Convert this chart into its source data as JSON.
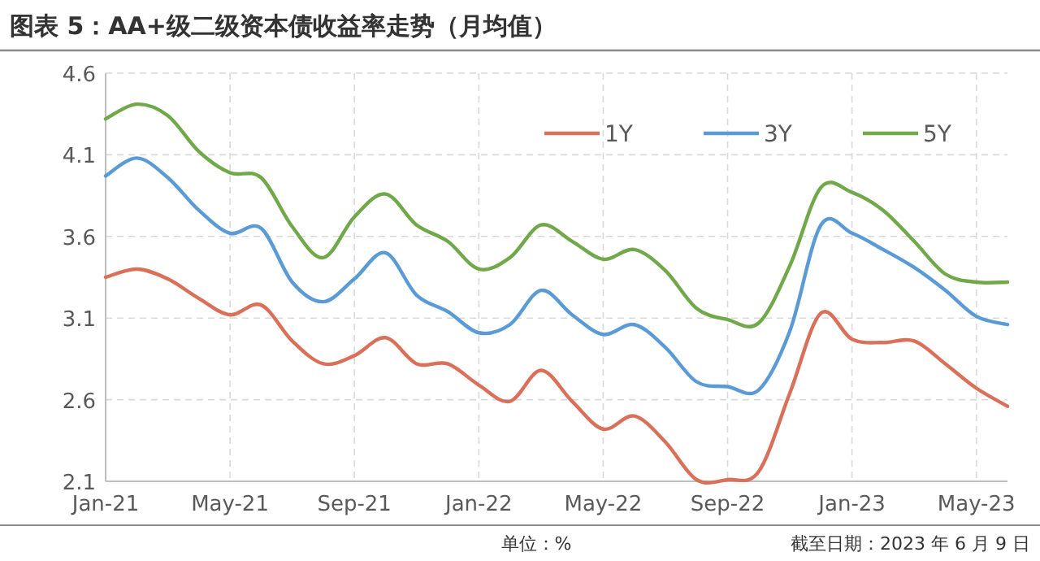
{
  "chart_data": {
    "type": "line",
    "title": "图表 5：AA+级二级资本债收益率走势（月均值）",
    "annotations": [
      "单位：%",
      "截至日期：2023 年 6 月 9 日"
    ],
    "x": [
      "2021-01",
      "2021-02",
      "2021-03",
      "2021-04",
      "2021-05",
      "2021-06",
      "2021-07",
      "2021-08",
      "2021-09",
      "2021-10",
      "2021-11",
      "2021-12",
      "2022-01",
      "2022-02",
      "2022-03",
      "2022-04",
      "2022-05",
      "2022-06",
      "2022-07",
      "2022-08",
      "2022-09",
      "2022-10",
      "2022-11",
      "2022-12",
      "2023-01",
      "2023-02",
      "2023-03",
      "2023-04",
      "2023-05",
      "2023-06"
    ],
    "series": [
      {
        "name": "1Y",
        "color": "#d9705a",
        "values": [
          3.35,
          3.4,
          3.34,
          3.22,
          3.12,
          3.18,
          2.96,
          2.82,
          2.87,
          2.98,
          2.82,
          2.82,
          2.69,
          2.59,
          2.78,
          2.59,
          2.42,
          2.5,
          2.34,
          2.11,
          2.11,
          2.16,
          2.64,
          3.13,
          2.97,
          2.95,
          2.96,
          2.82,
          2.67,
          2.56
        ]
      },
      {
        "name": "3Y",
        "color": "#5b9bd5",
        "values": [
          3.97,
          4.08,
          3.96,
          3.76,
          3.62,
          3.65,
          3.32,
          3.2,
          3.34,
          3.5,
          3.24,
          3.14,
          3.01,
          3.06,
          3.27,
          3.12,
          3.0,
          3.06,
          2.92,
          2.71,
          2.68,
          2.66,
          3.02,
          3.67,
          3.62,
          3.52,
          3.41,
          3.27,
          3.11,
          3.06
        ]
      },
      {
        "name": "5Y",
        "color": "#70a84a",
        "values": [
          4.32,
          4.41,
          4.34,
          4.12,
          3.99,
          3.96,
          3.66,
          3.47,
          3.72,
          3.86,
          3.67,
          3.57,
          3.4,
          3.47,
          3.67,
          3.57,
          3.46,
          3.52,
          3.39,
          3.16,
          3.09,
          3.07,
          3.42,
          3.9,
          3.87,
          3.76,
          3.57,
          3.37,
          3.32,
          3.32
        ]
      }
    ],
    "xlim": [
      "2021-01",
      "2023-06"
    ],
    "xticks": [
      {
        "value": "2021-01",
        "label": "Jan-21"
      },
      {
        "value": "2021-05",
        "label": "May-21"
      },
      {
        "value": "2021-09",
        "label": "Sep-21"
      },
      {
        "value": "2022-01",
        "label": "Jan-22"
      },
      {
        "value": "2022-05",
        "label": "May-22"
      },
      {
        "value": "2022-09",
        "label": "Sep-22"
      },
      {
        "value": "2023-01",
        "label": "Jan-23"
      },
      {
        "value": "2023-05",
        "label": "May-23"
      }
    ],
    "ylim": [
      2.1,
      4.6
    ],
    "yticks": [
      2.1,
      2.6,
      3.1,
      3.6,
      4.1,
      4.6
    ],
    "grid": true,
    "legend": "top right",
    "marker": "none",
    "line_style": "solid"
  }
}
